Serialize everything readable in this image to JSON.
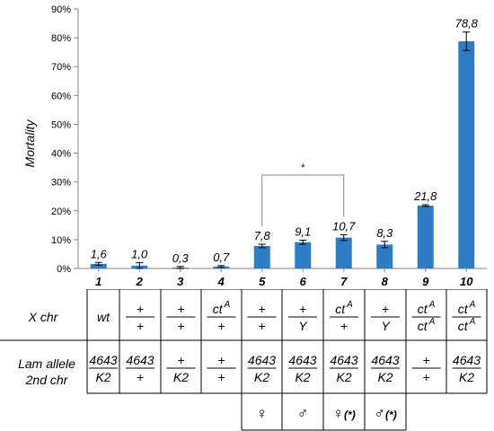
{
  "chart_data": {
    "type": "bar",
    "ylabel": "Mortality",
    "ylim": [
      0,
      90
    ],
    "yticks": [
      "0%",
      "10%",
      "20%",
      "30%",
      "40%",
      "50%",
      "60%",
      "70%",
      "80%",
      "90%"
    ],
    "categories": [
      "1",
      "2",
      "3",
      "4",
      "5",
      "6",
      "7",
      "8",
      "9",
      "10"
    ],
    "values": [
      1.6,
      1.0,
      0.3,
      0.7,
      7.8,
      9.1,
      10.7,
      8.3,
      21.8,
      78.8
    ],
    "value_labels": [
      "1,6",
      "1,0",
      "0,3",
      "0,7",
      "7,8",
      "9,1",
      "10,7",
      "8,3",
      "21,8",
      "78,8"
    ],
    "errors": [
      0.5,
      1.0,
      0.4,
      0.3,
      0.6,
      0.7,
      1.0,
      1.1,
      0.3,
      3.2
    ],
    "bar_color": "#2e7dc4",
    "significance": {
      "from": "5",
      "to": "7",
      "mark": "*"
    },
    "grid": false
  },
  "table": {
    "row1_label": "X chr",
    "row2_label_line1": "Lam allele",
    "row2_label_line2": "2nd chr",
    "x_chr": [
      {
        "plain": "wt"
      },
      {
        "top": "+",
        "bottom": "+"
      },
      {
        "top": "+",
        "bottom": "+"
      },
      {
        "top": "ct",
        "top_sup": "A",
        "bottom": "+"
      },
      {
        "top": "+",
        "bottom": "+"
      },
      {
        "top": "+",
        "bottom": "Y"
      },
      {
        "top": "ct",
        "top_sup": "A",
        "bottom": "+"
      },
      {
        "top": "+",
        "bottom": "Y"
      },
      {
        "top": "ct",
        "top_sup": "A",
        "bottom": "ct",
        "bottom_sup": "A"
      },
      {
        "top": "ct",
        "top_sup": "A",
        "bottom": "ct",
        "bottom_sup": "A"
      }
    ],
    "lam": [
      {
        "top": "4643",
        "bottom": "K2"
      },
      {
        "top": "4643",
        "bottom": "+"
      },
      {
        "top": "+",
        "bottom": "K2"
      },
      {
        "top": "+",
        "bottom": "+"
      },
      {
        "top": "4643",
        "bottom": "K2"
      },
      {
        "top": "4643",
        "bottom": "K2"
      },
      {
        "top": "4643",
        "bottom": "K2"
      },
      {
        "top": "4643",
        "bottom": "K2"
      },
      {
        "top": "+",
        "bottom": "+"
      },
      {
        "top": "4643",
        "bottom": "K2"
      }
    ],
    "sex": [
      {
        "col": "5",
        "symbol": "♀",
        "suffix": ""
      },
      {
        "col": "6",
        "symbol": "♂",
        "suffix": ""
      },
      {
        "col": "7",
        "symbol": "♀",
        "suffix": "(*)"
      },
      {
        "col": "8",
        "symbol": "♂",
        "suffix": "(*)"
      }
    ]
  }
}
